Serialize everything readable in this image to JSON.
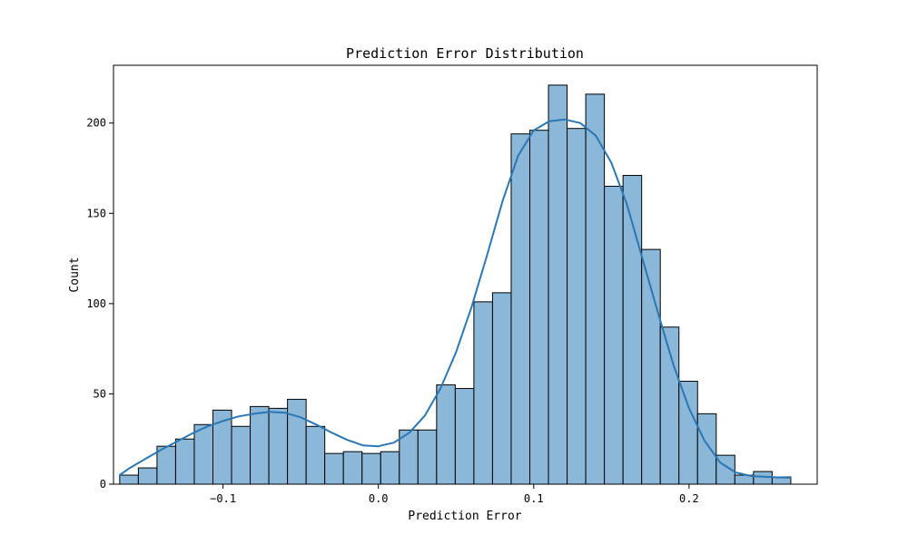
{
  "chart_data": {
    "type": "bar",
    "title": "Prediction Error Distribution",
    "xlabel": "Prediction Error",
    "ylabel": "Count",
    "xlim": [
      -0.1705,
      0.2825
    ],
    "ylim": [
      0,
      232
    ],
    "xticks": [
      {
        "value": -0.1,
        "label": "−0.1"
      },
      {
        "value": 0.0,
        "label": "0.0"
      },
      {
        "value": 0.1,
        "label": "0.1"
      },
      {
        "value": 0.2,
        "label": "0.2"
      }
    ],
    "yticks": [
      0,
      50,
      100,
      150,
      200
    ],
    "bin_edges": [
      -0.1665,
      -0.1545,
      -0.1425,
      -0.1305,
      -0.1185,
      -0.1065,
      -0.0945,
      -0.0825,
      -0.0705,
      -0.0585,
      -0.0465,
      -0.0345,
      -0.0225,
      -0.0105,
      0.0015,
      0.0135,
      0.0255,
      0.0375,
      0.0495,
      0.0615,
      0.0735,
      0.0855,
      0.0975,
      0.1095,
      0.1215,
      0.1335,
      0.1455,
      0.1575,
      0.1695,
      0.1815,
      0.1935,
      0.2055,
      0.2175,
      0.2295,
      0.2415,
      0.2535,
      0.2655
    ],
    "counts": [
      5,
      9,
      21,
      25,
      33,
      41,
      32,
      43,
      42,
      47,
      32,
      17,
      18,
      17,
      18,
      30,
      30,
      55,
      53,
      101,
      106,
      194,
      196,
      221,
      197,
      216,
      165,
      171,
      130,
      87,
      57,
      39,
      16,
      5,
      7,
      4
    ],
    "kde": {
      "x": [
        -0.1665,
        -0.16,
        -0.15,
        -0.14,
        -0.13,
        -0.12,
        -0.11,
        -0.1,
        -0.09,
        -0.08,
        -0.07,
        -0.06,
        -0.05,
        -0.04,
        -0.03,
        -0.02,
        -0.01,
        0.0,
        0.01,
        0.02,
        0.03,
        0.04,
        0.05,
        0.06,
        0.07,
        0.08,
        0.09,
        0.1,
        0.11,
        0.12,
        0.13,
        0.14,
        0.15,
        0.16,
        0.17,
        0.18,
        0.19,
        0.2,
        0.21,
        0.22,
        0.23,
        0.24,
        0.25,
        0.2655
      ],
      "y": [
        5,
        9,
        14,
        19,
        23.5,
        28,
        32,
        35,
        37.5,
        39,
        40,
        39.5,
        37,
        33,
        28.5,
        24.5,
        21.5,
        21,
        23,
        28.5,
        38,
        53,
        73,
        98,
        127,
        157,
        182,
        196,
        201,
        202,
        200,
        193,
        178,
        155,
        125,
        95,
        66,
        42,
        24,
        12,
        6.5,
        4.5,
        4,
        3.5
      ]
    },
    "bar_color": "#8bb7d9",
    "bar_edge_color": "#000000",
    "line_color": "#2a77b4",
    "grid": false,
    "legend": "none"
  }
}
